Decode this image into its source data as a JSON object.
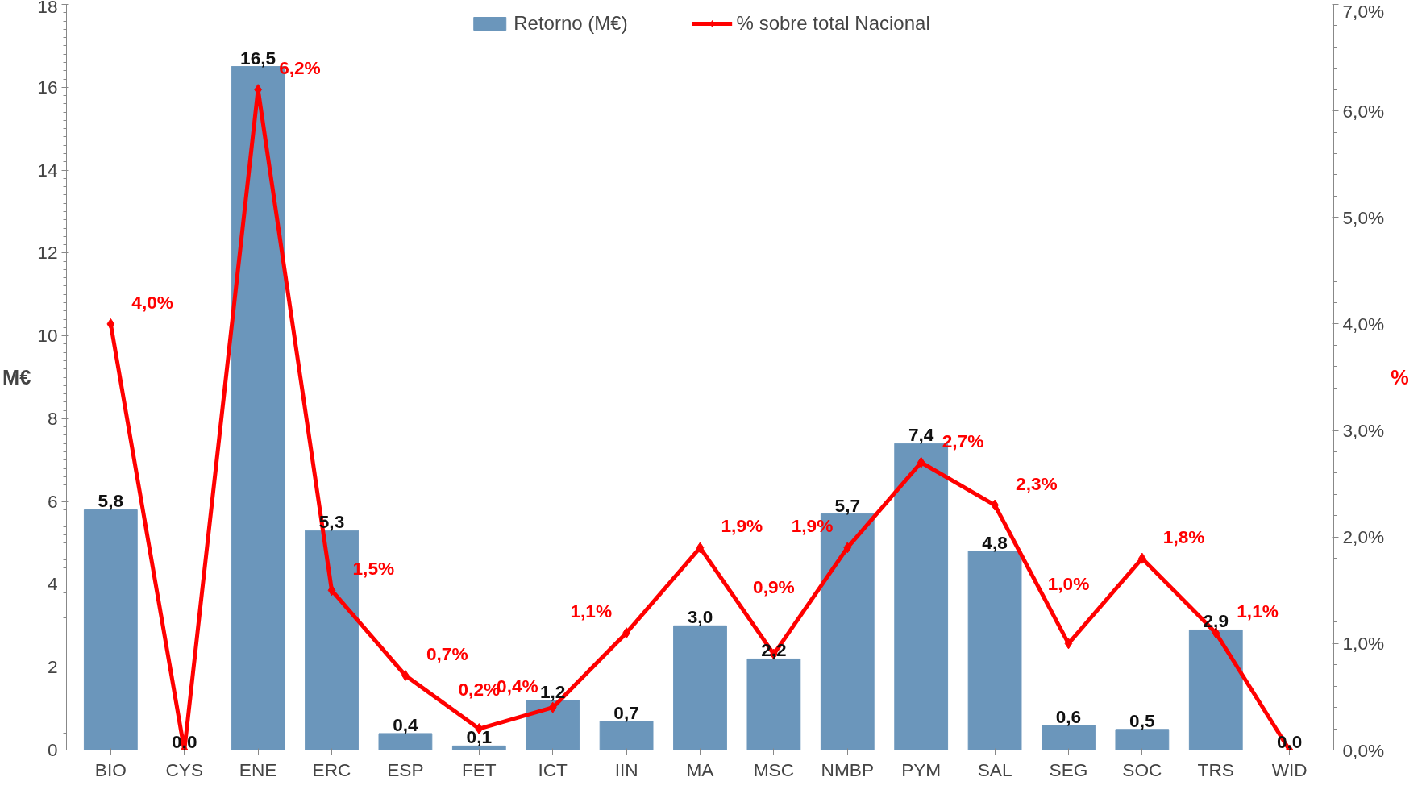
{
  "chart_data": {
    "type": "bar",
    "categories": [
      "BIO",
      "CYS",
      "ENE",
      "ERC",
      "ESP",
      "FET",
      "ICT",
      "IIN",
      "MA",
      "MSC",
      "NMBP",
      "PYM",
      "SAL",
      "SEG",
      "SOC",
      "TRS",
      "WID"
    ],
    "ylabel": "M€",
    "y2label": "%",
    "ylim": [
      0,
      18
    ],
    "yticks": [
      0,
      2,
      4,
      6,
      8,
      10,
      12,
      14,
      16,
      18
    ],
    "y2lim": [
      0,
      7
    ],
    "y2ticks": [
      {
        "value": 0,
        "label": "0,0%"
      },
      {
        "value": 1,
        "label": "1,0%"
      },
      {
        "value": 2,
        "label": "2,0%"
      },
      {
        "value": 3,
        "label": "3,0%"
      },
      {
        "value": 4,
        "label": "4,0%"
      },
      {
        "value": 5,
        "label": "5,0%"
      },
      {
        "value": 6,
        "label": "6,0%"
      },
      {
        "value": 7,
        "label": "7,0%"
      }
    ],
    "grid": false,
    "legend": "top",
    "series": [
      {
        "name": "Retorno (M€)",
        "color": "#6b96bb",
        "values": [
          5.8,
          0.0,
          16.5,
          5.3,
          0.4,
          0.1,
          1.2,
          0.7,
          3.0,
          2.2,
          5.7,
          7.4,
          4.8,
          0.6,
          0.5,
          2.9,
          0.0
        ],
        "value_labels": [
          "5,8",
          "0,0",
          "16,5",
          "5,3",
          "0,4",
          "0,1",
          "1,2",
          "0,7",
          "3,0",
          "2,2",
          "5,7",
          "7,4",
          "4,8",
          "0,6",
          "0,5",
          "2,9",
          "0,0"
        ]
      },
      {
        "name": "% sobre total Nacional",
        "type": "line",
        "axis": "y2",
        "color": "#ff0000",
        "marker": "diamond",
        "line_style": "solid",
        "values": [
          4.0,
          0.0,
          6.2,
          1.5,
          0.7,
          0.2,
          0.4,
          1.1,
          1.9,
          0.9,
          1.9,
          2.7,
          2.3,
          1.0,
          1.8,
          1.1,
          0.0
        ],
        "value_labels": [
          "4,0%",
          null,
          "6,2%",
          "1,5%",
          "0,7%",
          "0,2%",
          "0,4%",
          "1,1%",
          "1,9%",
          "0,9%",
          "1,9%",
          "2,7%",
          "2,3%",
          "1,0%",
          "1,8%",
          "1,1%",
          null
        ]
      }
    ]
  }
}
